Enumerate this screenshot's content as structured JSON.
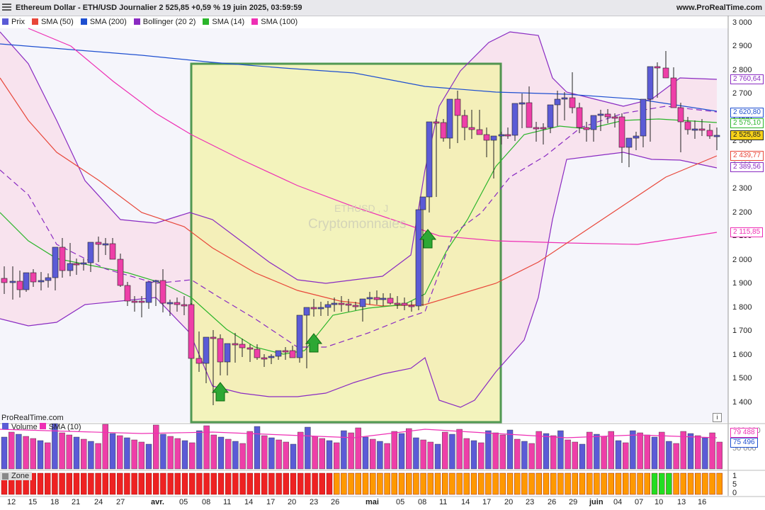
{
  "header": {
    "title": "Ethereum Dollar - ETH/USD Journalier 2 525,85 +0,59 % 19 juin 2025, 03:59:59",
    "site": "www.ProRealTime.com"
  },
  "legend": [
    {
      "label": "Prix",
      "color": "#5b5bd6"
    },
    {
      "label": "SMA (50)",
      "color": "#e8473a"
    },
    {
      "label": "SMA (200)",
      "color": "#1e4fd0"
    },
    {
      "label": "Bollinger (20 2)",
      "color": "#8a2bc2"
    },
    {
      "label": "SMA (14)",
      "color": "#2bb52b"
    },
    {
      "label": "SMA (100)",
      "color": "#ee2fb4"
    }
  ],
  "watermark": {
    "symbol": "ETHUSD , J",
    "category": "Cryptomonnaies"
  },
  "source": "ProRealTime.com",
  "info_button": "i",
  "y_axis": {
    "labels": [
      "3 000",
      "2 900",
      "2 800",
      "2 700",
      "2 600",
      "2 500",
      "2 400",
      "2 300",
      "2 200",
      "2 100",
      "2 000",
      "1 900",
      "1 800",
      "1 700",
      "1 600",
      "1 500",
      "1 400"
    ]
  },
  "price_tags": [
    {
      "value": "2 760,64",
      "color": "#8a2bc2",
      "fill": "#ffffff"
    },
    {
      "value": "2 620,80",
      "color": "#1e4fd0",
      "fill": "#ffffff"
    },
    {
      "value": "2 575,10",
      "color": "#2bb52b",
      "fill": "#ffffff"
    },
    {
      "value": "2 525,85",
      "color": "#222222",
      "fill": "#f7d21a"
    },
    {
      "value": "2 439,77",
      "color": "#e8473a",
      "fill": "#ffffff"
    },
    {
      "value": "2 389,56",
      "color": "#8a2bc2",
      "fill": "#ffffff"
    },
    {
      "value": "2 115,85",
      "color": "#ee2fb4",
      "fill": "#ffffff"
    }
  ],
  "x_axis": {
    "labels": [
      "12",
      "15",
      "18",
      "21",
      "24",
      "27",
      "avr.",
      "05",
      "08",
      "11",
      "14",
      "17",
      "20",
      "23",
      "26",
      "mai",
      "05",
      "08",
      "11",
      "14",
      "17",
      "20",
      "23",
      "26",
      "29",
      "juin",
      "04",
      "07",
      "10",
      "13",
      "16"
    ],
    "bold": [
      "avr.",
      "mai",
      "juin"
    ]
  },
  "volume_panel": {
    "legend": [
      {
        "label": "Volume",
        "color": "#5b5bd6"
      },
      {
        "label": "SMA (10)",
        "color": "#ee2fb4"
      }
    ],
    "axis": [
      "100 000",
      "50 000"
    ],
    "tags": [
      {
        "value": "79 488",
        "color": "#ee2fb4"
      },
      {
        "value": "75 496",
        "color": "#1e4fd0"
      }
    ]
  },
  "zone_panel": {
    "legend": "Zone",
    "axis": [
      "1",
      "5",
      "0"
    ]
  },
  "colors": {
    "bull": "#5b5bd6",
    "bear": "#ee3fa8",
    "zone_red": "#ee2222",
    "zone_orange": "#ff9900",
    "zone_green": "#22dd22",
    "highlight_box": "#1a7a1a",
    "highlight_fill": "#f3f3a8"
  }
}
